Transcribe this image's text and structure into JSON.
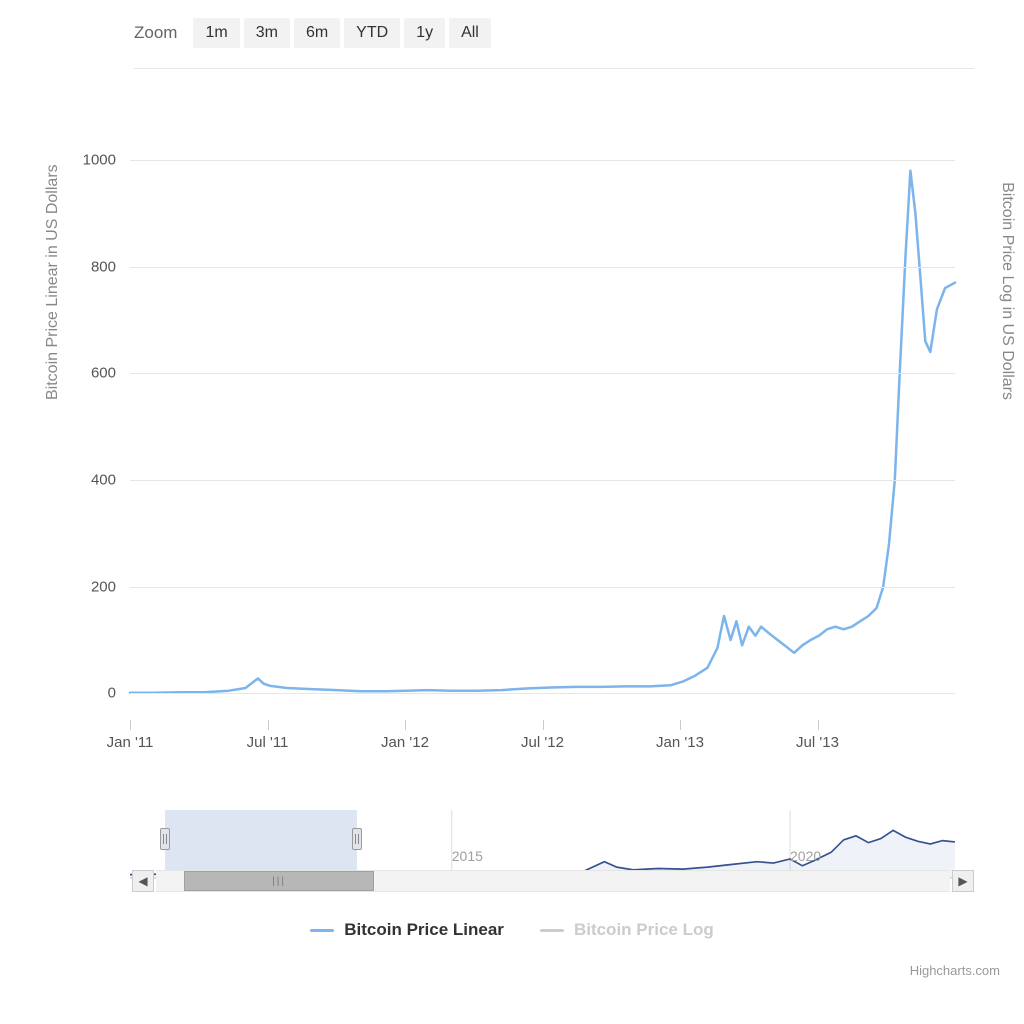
{
  "toolbar": {
    "label": "Zoom",
    "buttons": [
      "1m",
      "3m",
      "6m",
      "YTD",
      "1y",
      "All"
    ]
  },
  "chart": {
    "type": "line",
    "y_axis_left_title": "Bitcoin Price Linear in US Dollars",
    "y_axis_right_title": "Bitcoin Price Log in US Dollars",
    "ylim": [
      -50,
      1000
    ],
    "y_ticks": [
      0,
      200,
      400,
      600,
      800,
      1000
    ],
    "x_ticks": [
      "Jan '11",
      "Jul '11",
      "Jan '12",
      "Jul '12",
      "Jan '13",
      "Jul '13"
    ],
    "background_color": "#ffffff",
    "grid_color": "#e6e6e6",
    "axis_label_color": "#555555",
    "axis_title_color": "#888888",
    "axis_label_fontsize": 15,
    "axis_title_fontsize": 16,
    "series": {
      "name": "Bitcoin Price Linear",
      "color": "#7cb4ec",
      "line_width": 2.5,
      "data": [
        [
          0.0,
          1
        ],
        [
          0.03,
          1
        ],
        [
          0.06,
          2
        ],
        [
          0.09,
          2
        ],
        [
          0.12,
          5
        ],
        [
          0.14,
          10
        ],
        [
          0.155,
          28
        ],
        [
          0.162,
          18
        ],
        [
          0.17,
          14
        ],
        [
          0.19,
          10
        ],
        [
          0.22,
          8
        ],
        [
          0.25,
          6
        ],
        [
          0.28,
          4
        ],
        [
          0.31,
          4
        ],
        [
          0.335,
          5
        ],
        [
          0.36,
          6
        ],
        [
          0.39,
          5
        ],
        [
          0.42,
          5
        ],
        [
          0.45,
          6
        ],
        [
          0.48,
          9
        ],
        [
          0.51,
          11
        ],
        [
          0.54,
          12
        ],
        [
          0.57,
          12
        ],
        [
          0.6,
          13
        ],
        [
          0.63,
          13
        ],
        [
          0.655,
          15
        ],
        [
          0.67,
          22
        ],
        [
          0.685,
          33
        ],
        [
          0.7,
          48
        ],
        [
          0.712,
          85
        ],
        [
          0.72,
          145
        ],
        [
          0.728,
          100
        ],
        [
          0.735,
          135
        ],
        [
          0.742,
          90
        ],
        [
          0.75,
          125
        ],
        [
          0.758,
          108
        ],
        [
          0.765,
          125
        ],
        [
          0.775,
          112
        ],
        [
          0.785,
          100
        ],
        [
          0.795,
          88
        ],
        [
          0.805,
          76
        ],
        [
          0.815,
          90
        ],
        [
          0.825,
          100
        ],
        [
          0.835,
          108
        ],
        [
          0.845,
          120
        ],
        [
          0.855,
          125
        ],
        [
          0.865,
          120
        ],
        [
          0.875,
          125
        ],
        [
          0.885,
          135
        ],
        [
          0.895,
          145
        ],
        [
          0.905,
          160
        ],
        [
          0.913,
          200
        ],
        [
          0.92,
          280
        ],
        [
          0.927,
          400
        ],
        [
          0.933,
          600
        ],
        [
          0.94,
          820
        ],
        [
          0.946,
          980
        ],
        [
          0.952,
          900
        ],
        [
          0.958,
          780
        ],
        [
          0.964,
          660
        ],
        [
          0.97,
          640
        ],
        [
          0.978,
          720
        ],
        [
          0.988,
          760
        ],
        [
          1.0,
          770
        ]
      ]
    }
  },
  "navigator": {
    "series_color": "#37508f",
    "fill_color": "rgba(120,150,200,0.12)",
    "selection": {
      "start_pct": 4.2,
      "end_pct": 27.5
    },
    "x_labels": [
      {
        "text": "2015",
        "pos_pct": 39
      },
      {
        "text": "2020",
        "pos_pct": 80
      }
    ],
    "data": [
      [
        0.0,
        0.05
      ],
      [
        0.05,
        0.06
      ],
      [
        0.1,
        0.05
      ],
      [
        0.15,
        0.06
      ],
      [
        0.2,
        0.07
      ],
      [
        0.25,
        0.06
      ],
      [
        0.3,
        0.07
      ],
      [
        0.35,
        0.06
      ],
      [
        0.4,
        0.08
      ],
      [
        0.45,
        0.07
      ],
      [
        0.5,
        0.09
      ],
      [
        0.55,
        0.1
      ],
      [
        0.575,
        0.24
      ],
      [
        0.59,
        0.16
      ],
      [
        0.61,
        0.12
      ],
      [
        0.64,
        0.14
      ],
      [
        0.67,
        0.13
      ],
      [
        0.7,
        0.16
      ],
      [
        0.73,
        0.2
      ],
      [
        0.76,
        0.24
      ],
      [
        0.78,
        0.22
      ],
      [
        0.8,
        0.28
      ],
      [
        0.815,
        0.18
      ],
      [
        0.83,
        0.26
      ],
      [
        0.85,
        0.38
      ],
      [
        0.865,
        0.56
      ],
      [
        0.88,
        0.62
      ],
      [
        0.895,
        0.52
      ],
      [
        0.91,
        0.58
      ],
      [
        0.925,
        0.7
      ],
      [
        0.94,
        0.6
      ],
      [
        0.955,
        0.54
      ],
      [
        0.97,
        0.5
      ],
      [
        0.985,
        0.55
      ],
      [
        1.0,
        0.53
      ]
    ]
  },
  "scrollbar": {
    "thumb_start_pct": 3.5,
    "thumb_width_pct": 24
  },
  "legend": {
    "items": [
      {
        "label": "Bitcoin Price Linear",
        "color": "#7cb4ec",
        "text_color": "#333333",
        "active": true
      },
      {
        "label": "Bitcoin Price Log",
        "color": "#cccccc",
        "text_color": "#cccccc",
        "active": false
      }
    ]
  },
  "credits": "Highcharts.com"
}
